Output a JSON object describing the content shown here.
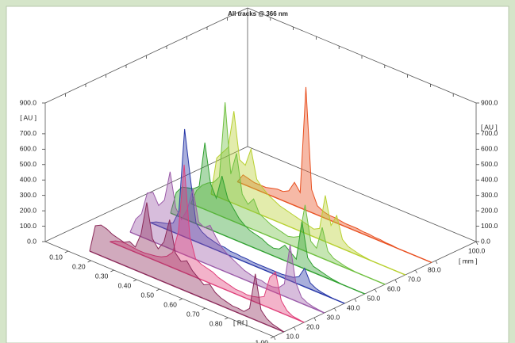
{
  "chart_data": {
    "type": "line3d",
    "title": "All tracks @ 366 nm",
    "x": [
      0.15,
      0.175,
      0.2,
      0.225,
      0.25,
      0.275,
      0.3,
      0.325,
      0.35,
      0.375,
      0.4,
      0.425,
      0.45,
      0.475,
      0.5,
      0.525,
      0.55,
      0.575,
      0.6,
      0.625,
      0.65,
      0.675,
      0.7,
      0.725,
      0.75,
      0.775,
      0.8,
      0.825,
      0.85,
      0.875,
      0.9,
      0.925,
      0.95,
      0.975,
      1.0
    ],
    "xlim": [
      0,
      1
    ],
    "xticks": [
      {
        "value": 0.1,
        "label": "0.10"
      },
      {
        "value": 0.2,
        "label": "0.20"
      },
      {
        "value": 0.3,
        "label": "0.30"
      },
      {
        "value": 0.4,
        "label": "0.40"
      },
      {
        "value": 0.5,
        "label": "0.50"
      },
      {
        "value": 0.6,
        "label": "0.60"
      },
      {
        "value": 0.7,
        "label": "0.70"
      },
      {
        "value": 0.8,
        "label": "0.80"
      },
      {
        "value": 1.0,
        "label": "1.00"
      }
    ],
    "x_label": "[ Rf ]",
    "ylim": [
      0,
      900
    ],
    "yticks": [
      {
        "value": 0,
        "label": "0.0"
      },
      {
        "value": 100,
        "label": "100.0"
      },
      {
        "value": 200,
        "label": "200.0"
      },
      {
        "value": 300,
        "label": "300.0"
      },
      {
        "value": 400,
        "label": "400.0"
      },
      {
        "value": 500,
        "label": "500.0"
      },
      {
        "value": 600,
        "label": "600.0"
      },
      {
        "value": 700,
        "label": "700.0"
      },
      {
        "value": 900,
        "label": "900.0"
      }
    ],
    "y_label": "[ AU ]",
    "y2lim": [
      0,
      900
    ],
    "y2ticks": [
      {
        "value": 0,
        "label": "0.0"
      },
      {
        "value": 100,
        "label": "100.0"
      },
      {
        "value": 200,
        "label": "200.0"
      },
      {
        "value": 300,
        "label": "300.0"
      },
      {
        "value": 400,
        "label": "400.0"
      },
      {
        "value": 500,
        "label": "500.0"
      },
      {
        "value": 600,
        "label": "600.0"
      },
      {
        "value": 700,
        "label": "700.0"
      },
      {
        "value": 900,
        "label": "900.0"
      }
    ],
    "y2_label": "[ AU ]",
    "zlim": [
      0,
      100
    ],
    "zticks": [
      {
        "value": 0,
        "label": "0.0"
      },
      {
        "value": 10,
        "label": "10.0"
      },
      {
        "value": 20,
        "label": "20.0"
      },
      {
        "value": 30,
        "label": "30.0"
      },
      {
        "value": 40,
        "label": "40.0"
      },
      {
        "value": 50,
        "label": "50.0"
      },
      {
        "value": 60,
        "label": "60.0"
      },
      {
        "value": 70,
        "label": "70.0"
      },
      {
        "value": 80,
        "label": "80.0"
      },
      {
        "value": 100,
        "label": "100.0"
      }
    ],
    "z_label": "[ mm ]",
    "series": [
      {
        "color": "#8b2a5a",
        "track_mm": 5,
        "values": [
          0,
          180,
          200,
          190,
          170,
          160,
          150,
          170,
          150,
          250,
          470,
          250,
          200,
          260,
          420,
          220,
          180,
          200,
          150,
          120,
          90,
          110,
          70,
          50,
          40,
          30,
          30,
          25,
          60,
          300,
          80,
          40,
          20,
          10,
          0
        ]
      },
      {
        "color": "#e0407a",
        "track_mm": 15,
        "values": [
          0,
          20,
          30,
          30,
          25,
          20,
          20,
          25,
          30,
          40,
          60,
          100,
          250,
          700,
          250,
          120,
          100,
          90,
          80,
          60,
          50,
          40,
          30,
          30,
          25,
          30,
          40,
          60,
          200,
          250,
          80,
          30,
          10,
          5,
          0
        ]
      },
      {
        "color": "#9a5aa8",
        "track_mm": 25,
        "values": [
          0,
          100,
          150,
          300,
          320,
          250,
          300,
          500,
          280,
          220,
          300,
          450,
          250,
          230,
          260,
          200,
          150,
          120,
          100,
          80,
          60,
          50,
          40,
          40,
          30,
          30,
          40,
          80,
          350,
          120,
          40,
          20,
          10,
          5,
          0
        ]
      },
      {
        "color": "#2838a8",
        "track_mm": 35,
        "values": [
          0,
          20,
          30,
          40,
          60,
          150,
          700,
          400,
          120,
          80,
          60,
          50,
          40,
          40,
          30,
          30,
          25,
          25,
          20,
          20,
          20,
          20,
          20,
          20,
          25,
          30,
          50,
          120,
          40,
          20,
          10,
          5,
          0,
          0,
          0
        ]
      },
      {
        "color": "#30a030",
        "track_mm": 45,
        "values": [
          0,
          150,
          200,
          210,
          220,
          250,
          550,
          300,
          220,
          380,
          250,
          200,
          150,
          120,
          100,
          90,
          80,
          60,
          50,
          60,
          100,
          70,
          40,
          300,
          80,
          40,
          30,
          20,
          10,
          5,
          0,
          0,
          0,
          0,
          0
        ]
      },
      {
        "color": "#70c040",
        "track_mm": 55,
        "values": [
          0,
          100,
          150,
          180,
          200,
          250,
          750,
          300,
          450,
          200,
          150,
          200,
          120,
          100,
          80,
          70,
          60,
          50,
          60,
          80,
          300,
          80,
          50,
          200,
          60,
          30,
          20,
          10,
          5,
          0,
          0,
          0,
          0,
          0,
          0
        ]
      },
      {
        "color": "#b8d030",
        "track_mm": 65,
        "values": [
          0,
          250,
          300,
          350,
          600,
          300,
          280,
          400,
          220,
          180,
          150,
          130,
          110,
          100,
          90,
          80,
          70,
          60,
          50,
          70,
          300,
          120,
          200,
          60,
          30,
          20,
          10,
          5,
          0,
          0,
          0,
          0,
          0,
          0,
          0
        ]
      },
      {
        "color": "#e85020",
        "track_mm": 78,
        "values": [
          0,
          60,
          50,
          40,
          40,
          40,
          50,
          60,
          60,
          80,
          150,
          100,
          800,
          150,
          60,
          40,
          30,
          30,
          25,
          20,
          20,
          20,
          15,
          15,
          10,
          10,
          5,
          5,
          0,
          0,
          0,
          0,
          0,
          0,
          0
        ]
      }
    ]
  }
}
